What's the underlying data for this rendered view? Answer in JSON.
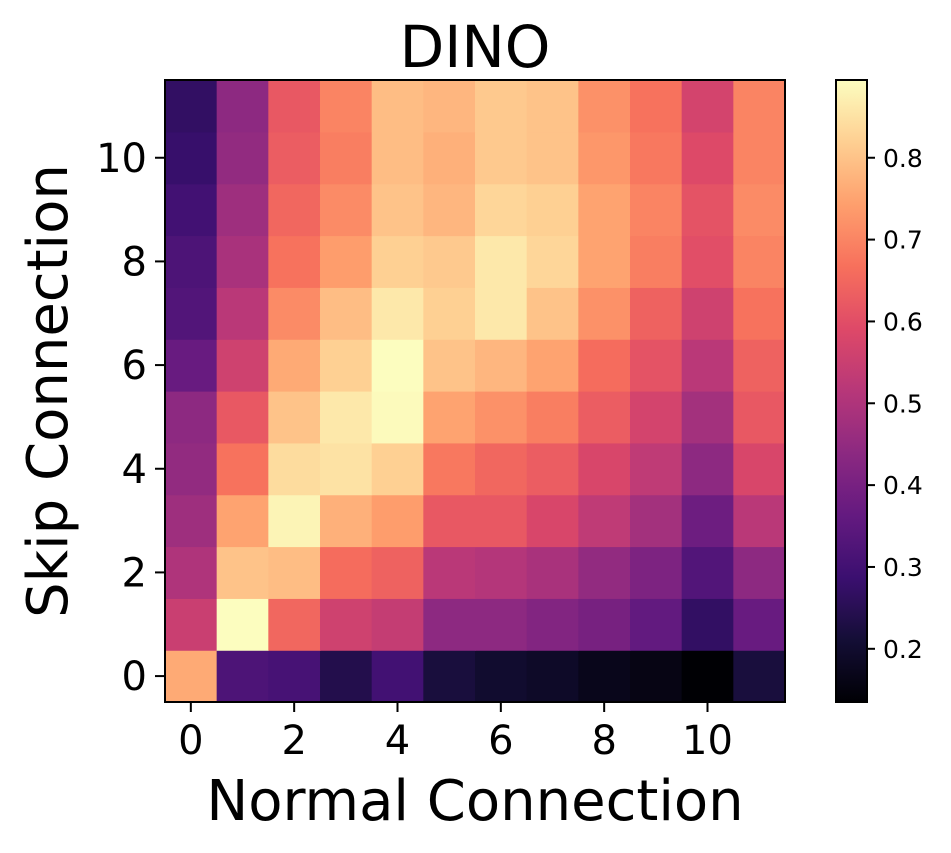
{
  "chart_data": {
    "type": "heatmap",
    "title": "DINO",
    "xlabel": "Normal Connection",
    "ylabel": "Skip Connection",
    "x_range": [
      -0.5,
      11.5
    ],
    "y_range": [
      -0.5,
      11.5
    ],
    "xticks": [
      0,
      2,
      4,
      6,
      8,
      10
    ],
    "yticks": [
      0,
      2,
      4,
      6,
      8,
      10
    ],
    "colormap": "magma",
    "colorbar": {
      "range": [
        0.135,
        0.895
      ],
      "ticks": [
        0.2,
        0.3,
        0.4,
        0.5,
        0.6,
        0.7,
        0.8
      ]
    },
    "matrix": [
      [
        0.76,
        0.32,
        0.31,
        0.24,
        0.3,
        0.22,
        0.2,
        0.19,
        0.17,
        0.16,
        0.135,
        0.22
      ],
      [
        0.55,
        0.895,
        0.65,
        0.56,
        0.54,
        0.44,
        0.44,
        0.42,
        0.4,
        0.36,
        0.27,
        0.37
      ],
      [
        0.5,
        0.8,
        0.79,
        0.66,
        0.64,
        0.52,
        0.51,
        0.49,
        0.45,
        0.41,
        0.33,
        0.44
      ],
      [
        0.47,
        0.75,
        0.88,
        0.77,
        0.74,
        0.62,
        0.62,
        0.58,
        0.53,
        0.48,
        0.38,
        0.52
      ],
      [
        0.45,
        0.67,
        0.84,
        0.85,
        0.82,
        0.68,
        0.65,
        0.63,
        0.58,
        0.53,
        0.44,
        0.58
      ],
      [
        0.44,
        0.62,
        0.8,
        0.86,
        0.89,
        0.75,
        0.72,
        0.69,
        0.63,
        0.57,
        0.48,
        0.62
      ],
      [
        0.37,
        0.56,
        0.76,
        0.82,
        0.895,
        0.8,
        0.78,
        0.75,
        0.66,
        0.61,
        0.52,
        0.64
      ],
      [
        0.33,
        0.52,
        0.71,
        0.79,
        0.86,
        0.82,
        0.86,
        0.8,
        0.72,
        0.64,
        0.56,
        0.67
      ],
      [
        0.32,
        0.49,
        0.67,
        0.74,
        0.82,
        0.81,
        0.86,
        0.83,
        0.75,
        0.69,
        0.6,
        0.7
      ],
      [
        0.3,
        0.47,
        0.65,
        0.71,
        0.8,
        0.78,
        0.83,
        0.82,
        0.75,
        0.7,
        0.61,
        0.71
      ],
      [
        0.28,
        0.45,
        0.63,
        0.69,
        0.79,
        0.77,
        0.81,
        0.8,
        0.73,
        0.68,
        0.59,
        0.7
      ],
      [
        0.27,
        0.44,
        0.62,
        0.7,
        0.79,
        0.78,
        0.81,
        0.8,
        0.72,
        0.67,
        0.57,
        0.7
      ]
    ]
  }
}
